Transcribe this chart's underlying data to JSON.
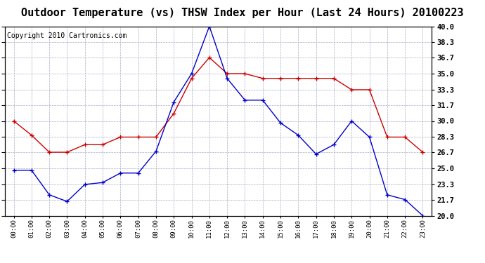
{
  "title": "Outdoor Temperature (vs) THSW Index per Hour (Last 24 Hours) 20100223",
  "copyright": "Copyright 2010 Cartronics.com",
  "hours": [
    "00:00",
    "01:00",
    "02:00",
    "03:00",
    "04:00",
    "05:00",
    "06:00",
    "07:00",
    "08:00",
    "09:00",
    "10:00",
    "11:00",
    "12:00",
    "13:00",
    "14:00",
    "15:00",
    "16:00",
    "17:00",
    "18:00",
    "19:00",
    "20:00",
    "21:00",
    "22:00",
    "23:00"
  ],
  "temp": [
    24.8,
    24.8,
    22.2,
    21.5,
    23.3,
    23.5,
    24.5,
    24.5,
    26.8,
    32.0,
    35.0,
    40.0,
    34.5,
    32.2,
    32.2,
    29.8,
    28.5,
    26.5,
    27.5,
    30.0,
    28.3,
    22.2,
    21.7,
    20.0
  ],
  "thsw": [
    30.0,
    28.5,
    26.7,
    26.7,
    27.5,
    27.5,
    28.3,
    28.3,
    28.3,
    30.8,
    34.5,
    36.7,
    35.0,
    35.0,
    34.5,
    34.5,
    34.5,
    34.5,
    34.5,
    33.3,
    33.3,
    28.3,
    28.3,
    26.7
  ],
  "temp_color": "#0000cc",
  "thsw_color": "#cc0000",
  "bg_color": "#ffffff",
  "grid_color": "#aaaacc",
  "ylim_min": 20.0,
  "ylim_max": 40.0,
  "yticks": [
    20.0,
    21.7,
    23.3,
    25.0,
    26.7,
    28.3,
    30.0,
    31.7,
    33.3,
    35.0,
    36.7,
    38.3,
    40.0
  ],
  "title_fontsize": 11,
  "copyright_fontsize": 7,
  "marker": "+",
  "marker_size": 4,
  "linewidth": 1.0
}
